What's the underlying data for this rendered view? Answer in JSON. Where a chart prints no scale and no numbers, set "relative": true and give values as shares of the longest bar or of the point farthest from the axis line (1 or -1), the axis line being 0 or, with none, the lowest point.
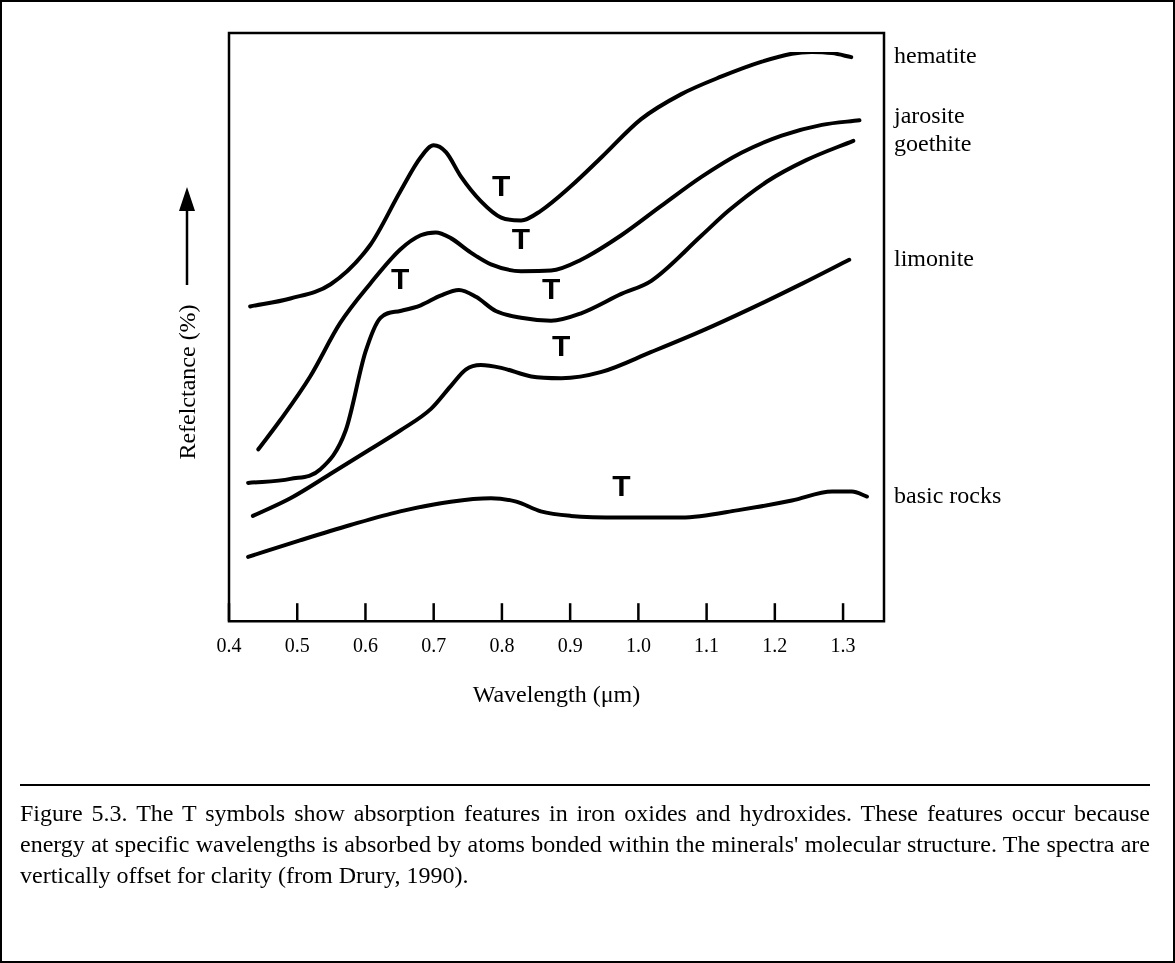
{
  "chart_data": {
    "type": "line",
    "xlabel": "Wavelength (μm)",
    "ylabel": "Refelctance (%)",
    "relative": true,
    "xlim": [
      0.4,
      1.36
    ],
    "xticks": [
      0.4,
      0.5,
      0.6,
      0.7,
      0.8,
      0.9,
      {
        "value": 1,
        "label": "1.0"
      },
      1.1,
      1.2,
      1.3
    ],
    "legend": false,
    "marker": "none",
    "line_style": "solid",
    "series": [
      {
        "name": "hematite",
        "color": "#000000",
        "x": [
          0.431,
          0.49,
          0.549,
          0.607,
          0.651,
          0.681,
          0.7,
          0.718,
          0.74,
          0.769,
          0.799,
          0.828,
          0.857,
          0.901,
          0.946,
          1.004,
          1.063,
          1.122,
          1.181,
          1.225,
          1.254,
          1.284,
          1.312
        ],
        "values": [
          0.553,
          0.567,
          0.592,
          0.661,
          0.755,
          0.815,
          0.836,
          0.824,
          0.781,
          0.738,
          0.709,
          0.704,
          0.721,
          0.764,
          0.815,
          0.882,
          0.926,
          0.957,
          0.983,
          0.997,
          1,
          0.998,
          0.991
        ]
      },
      {
        "name": "jarosite",
        "color": "#000000",
        "x": [
          0.443,
          0.475,
          0.519,
          0.563,
          0.607,
          0.651,
          0.681,
          0.703,
          0.725,
          0.754,
          0.784,
          0.828,
          0.872,
          0.916,
          0.975,
          1.034,
          1.093,
          1.151,
          1.21,
          1.269,
          1.324
        ],
        "values": [
          0.302,
          0.353,
          0.43,
          0.524,
          0.593,
          0.653,
          0.678,
          0.683,
          0.673,
          0.648,
          0.627,
          0.615,
          0.616,
          0.635,
          0.678,
          0.73,
          0.781,
          0.823,
          0.853,
          0.872,
          0.88
        ]
      },
      {
        "name": "goethite",
        "color": "#000000",
        "x": [
          0.428,
          0.49,
          0.534,
          0.571,
          0.6,
          0.622,
          0.651,
          0.681,
          0.71,
          0.737,
          0.762,
          0.791,
          0.828,
          0.872,
          0.916,
          0.975,
          1.019,
          1.093,
          1.132,
          1.188,
          1.246,
          1.315
        ],
        "values": [
          0.243,
          0.25,
          0.267,
          0.335,
          0.473,
          0.533,
          0.545,
          0.555,
          0.572,
          0.582,
          0.57,
          0.545,
          0.533,
          0.528,
          0.541,
          0.575,
          0.598,
          0.678,
          0.721,
          0.772,
          0.81,
          0.844
        ]
      },
      {
        "name": "limonite",
        "color": "#000000",
        "x": [
          0.435,
          0.49,
          0.549,
          0.607,
          0.651,
          0.696,
          0.725,
          0.747,
          0.769,
          0.799,
          0.843,
          0.887,
          0.946,
          1.019,
          1.093,
          1.166,
          1.24,
          1.309
        ],
        "values": [
          0.185,
          0.216,
          0.259,
          0.302,
          0.335,
          0.373,
          0.413,
          0.442,
          0.45,
          0.445,
          0.43,
          0.427,
          0.438,
          0.473,
          0.51,
          0.55,
          0.593,
          0.635
        ]
      },
      {
        "name": "basic rocks",
        "color": "#000000",
        "x": [
          0.428,
          0.504,
          0.578,
          0.651,
          0.725,
          0.784,
          0.821,
          0.857,
          0.901,
          0.975,
          1.063,
          1.151,
          1.225,
          1.284,
          1.313,
          1.335
        ],
        "values": [
          0.113,
          0.142,
          0.169,
          0.193,
          0.21,
          0.216,
          0.21,
          0.193,
          0.185,
          0.182,
          0.182,
          0.196,
          0.212,
          0.228,
          0.228,
          0.219
        ]
      }
    ],
    "annotations": [
      {
        "text": "T",
        "x": 0.799,
        "y": 0.709
      },
      {
        "text": "T",
        "x": 0.828,
        "y": 0.615
      },
      {
        "text": "T",
        "x": 0.651,
        "y": 0.545
      },
      {
        "text": "T",
        "x": 0.872,
        "y": 0.528
      },
      {
        "text": "T",
        "x": 0.887,
        "y": 0.427
      },
      {
        "text": "T",
        "x": 0.975,
        "y": 0.182
      },
      "Figure 5.3. The T symbols show absorption features in iron oxides and hydroxides. These features occur because energy at specific wavelengths is absorbed by atoms bonded within the minerals' molecular structure. The spectra are vertically offset for clarity (from Drury, 1990)."
    ]
  }
}
